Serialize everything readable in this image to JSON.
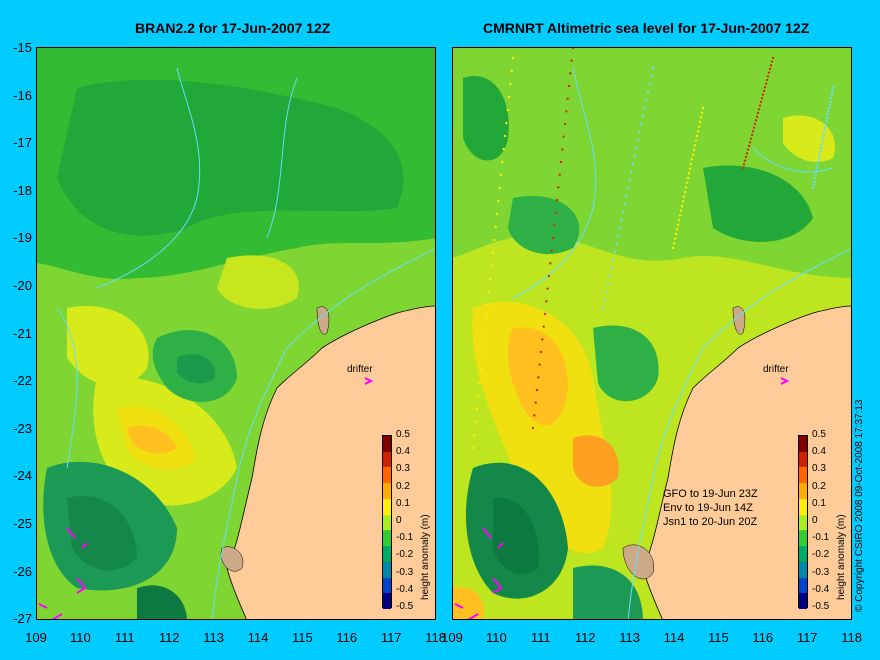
{
  "left_panel": {
    "title": "BRAN2.2 for 17-Jun-2007 12Z",
    "drifter_label": "drifter"
  },
  "right_panel": {
    "title": "CMRNRT Altimetric sea level  for 17-Jun-2007 12Z",
    "drifter_label": "drifter",
    "satellites": [
      "GFO to 19-Jun 23Z",
      "Env to 19-Jun 14Z",
      "Jsn1 to 20-Jun 20Z"
    ]
  },
  "y_ticks": [
    "-15",
    "-16",
    "-17",
    "-18",
    "-19",
    "-20",
    "-21",
    "-22",
    "-23",
    "-24",
    "-25",
    "-26",
    "-27"
  ],
  "x_ticks": [
    "109",
    "110",
    "111",
    "112",
    "113",
    "114",
    "115",
    "116",
    "117",
    "118"
  ],
  "colorbar": {
    "label": "height anomaly (m)",
    "ticks": [
      "0.5",
      "0.4",
      "0.3",
      "0.2",
      "0.1",
      "0",
      "-0.1",
      "-0.2",
      "-0.3",
      "-0.4",
      "-0.5"
    ],
    "colors": [
      "#800000",
      "#cc2200",
      "#ff6600",
      "#ffaa00",
      "#ffee00",
      "#aaee22",
      "#33cc33",
      "#00aa66",
      "#0088aa",
      "#0044cc",
      "#000080"
    ]
  },
  "copyright": "© Copyright CSIRO 2008   09-Oct-2008 17:37:13",
  "colors": {
    "background": "#00ccff",
    "land": "#ffcc99",
    "coast_contour": "#66ddff",
    "drifter": "#ff00ff"
  }
}
